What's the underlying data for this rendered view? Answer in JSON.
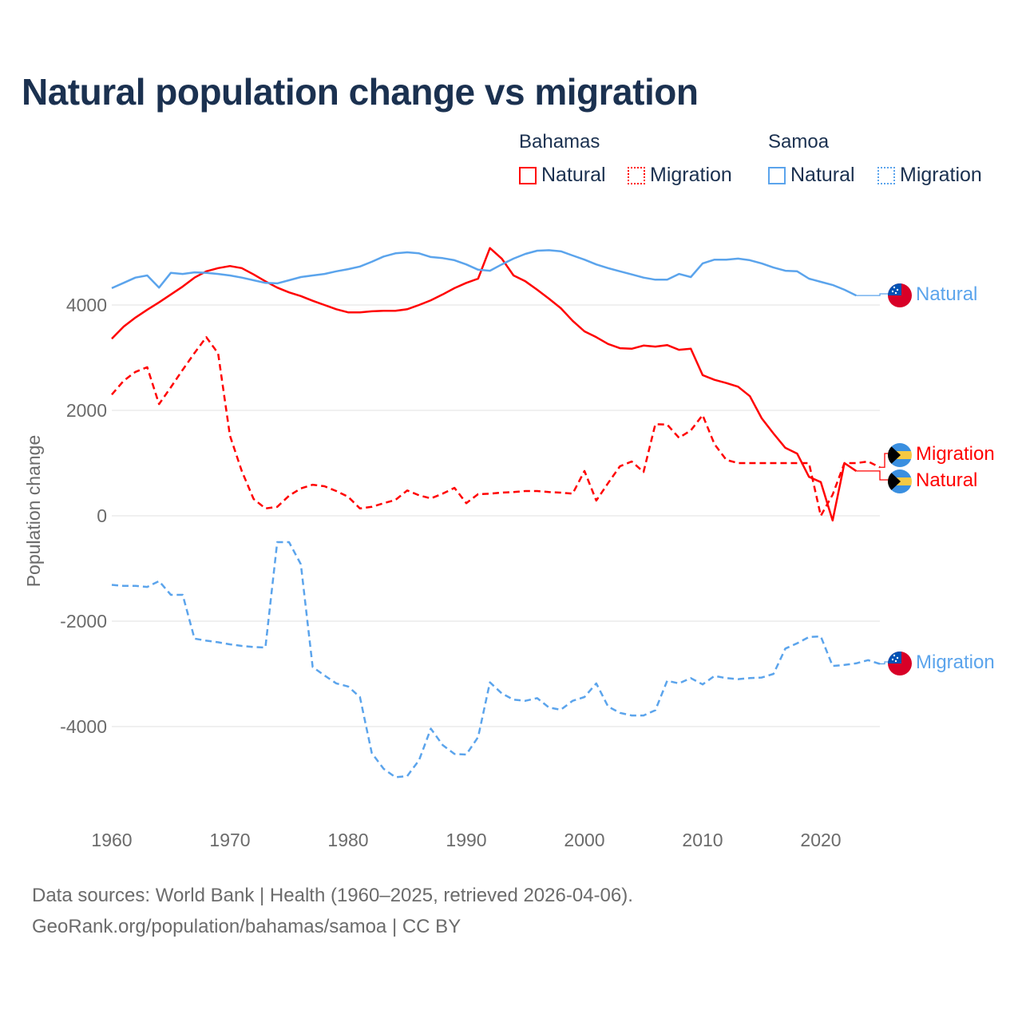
{
  "title": "Natural population change vs migration",
  "legend": {
    "groups": [
      {
        "name": "Bahamas",
        "color": "#ff0000",
        "items": [
          "Natural",
          "Migration"
        ]
      },
      {
        "name": "Samoa",
        "color": "#5ba4ec",
        "items": [
          "Natural",
          "Migration"
        ]
      }
    ]
  },
  "footer": {
    "line1": "Data sources: World Bank | Health (1960–2025, retrieved 2026-04-06).",
    "line2": "GeoRank.org/population/bahamas/samoa | CC BY"
  },
  "chart_data": {
    "type": "line",
    "title": "Natural population change vs migration",
    "xlabel": "",
    "ylabel": "Population change",
    "xlim": [
      1960,
      2025
    ],
    "ylim": [
      -5300,
      5300
    ],
    "x_ticks": [
      "1960",
      "1970",
      "1980",
      "1990",
      "2000",
      "2010",
      "2020"
    ],
    "y_ticks": [
      "4000",
      "2000",
      "0",
      "-2000",
      "-4000"
    ],
    "grid": true,
    "legend_position": "top-right",
    "series": [
      {
        "name": "Bahamas Natural",
        "country": "Bahamas",
        "kind": "Natural",
        "color": "#ff0000",
        "dashed": false,
        "end_label": "Natural",
        "start_year": 1960,
        "values": [
          3360,
          3590,
          3760,
          3910,
          4050,
          4200,
          4350,
          4520,
          4640,
          4700,
          4740,
          4700,
          4580,
          4450,
          4330,
          4240,
          4170,
          4080,
          4000,
          3920,
          3860,
          3860,
          3880,
          3890,
          3890,
          3920,
          4000,
          4090,
          4200,
          4320,
          4420,
          4500,
          5080,
          4880,
          4560,
          4450,
          4290,
          4120,
          3940,
          3700,
          3500,
          3390,
          3260,
          3180,
          3170,
          3230,
          3210,
          3240,
          3150,
          3170,
          2670,
          2580,
          2520,
          2450,
          2270,
          1850,
          1560,
          1290,
          1180,
          740,
          640,
          -90,
          1000,
          850
        ]
      },
      {
        "name": "Bahamas Migration",
        "country": "Bahamas",
        "kind": "Migration",
        "color": "#ff0000",
        "dashed": true,
        "end_label": "Migration",
        "start_year": 1960,
        "values": [
          2300,
          2560,
          2730,
          2820,
          2120,
          2440,
          2770,
          3090,
          3390,
          3080,
          1520,
          850,
          320,
          140,
          170,
          380,
          520,
          590,
          560,
          470,
          360,
          140,
          170,
          240,
          300,
          480,
          390,
          330,
          420,
          530,
          240,
          410,
          420,
          440,
          450,
          470,
          470,
          450,
          440,
          420,
          850,
          290,
          620,
          940,
          1030,
          830,
          1740,
          1730,
          1480,
          1620,
          1910,
          1360,
          1060,
          1000,
          1000,
          1000,
          1000,
          1000,
          1000,
          1000,
          0,
          400,
          1000,
          1000,
          1030,
          920
        ]
      },
      {
        "name": "Samoa Natural",
        "country": "Samoa",
        "kind": "Natural",
        "color": "#5ba4ec",
        "dashed": false,
        "end_label": "Natural",
        "start_year": 1960,
        "values": [
          4320,
          4420,
          4520,
          4560,
          4330,
          4610,
          4590,
          4620,
          4610,
          4590,
          4560,
          4520,
          4470,
          4420,
          4410,
          4470,
          4530,
          4560,
          4590,
          4640,
          4680,
          4730,
          4820,
          4920,
          4980,
          5000,
          4980,
          4910,
          4890,
          4850,
          4770,
          4670,
          4650,
          4770,
          4880,
          4970,
          5030,
          5040,
          5020,
          4940,
          4860,
          4770,
          4700,
          4640,
          4580,
          4520,
          4480,
          4480,
          4590,
          4530,
          4790,
          4860,
          4860,
          4880,
          4850,
          4790,
          4710,
          4650,
          4640,
          4500,
          4440,
          4380,
          4290,
          4180
        ]
      },
      {
        "name": "Samoa Migration",
        "country": "Samoa",
        "kind": "Migration",
        "color": "#5ba4ec",
        "dashed": true,
        "end_label": "Migration",
        "start_year": 1960,
        "values": [
          -1310,
          -1330,
          -1330,
          -1350,
          -1240,
          -1500,
          -1500,
          -2330,
          -2370,
          -2400,
          -2440,
          -2470,
          -2490,
          -2500,
          -500,
          -500,
          -920,
          -2870,
          -3030,
          -3180,
          -3240,
          -3440,
          -4500,
          -4800,
          -4960,
          -4940,
          -4640,
          -4040,
          -4350,
          -4520,
          -4530,
          -4200,
          -3160,
          -3370,
          -3490,
          -3510,
          -3460,
          -3640,
          -3680,
          -3510,
          -3440,
          -3180,
          -3620,
          -3740,
          -3790,
          -3790,
          -3690,
          -3130,
          -3180,
          -3080,
          -3200,
          -3040,
          -3080,
          -3100,
          -3080,
          -3070,
          -3000,
          -2520,
          -2420,
          -2300,
          -2290,
          -2850,
          -2830,
          -2800,
          -2740,
          -2810
        ]
      }
    ]
  }
}
